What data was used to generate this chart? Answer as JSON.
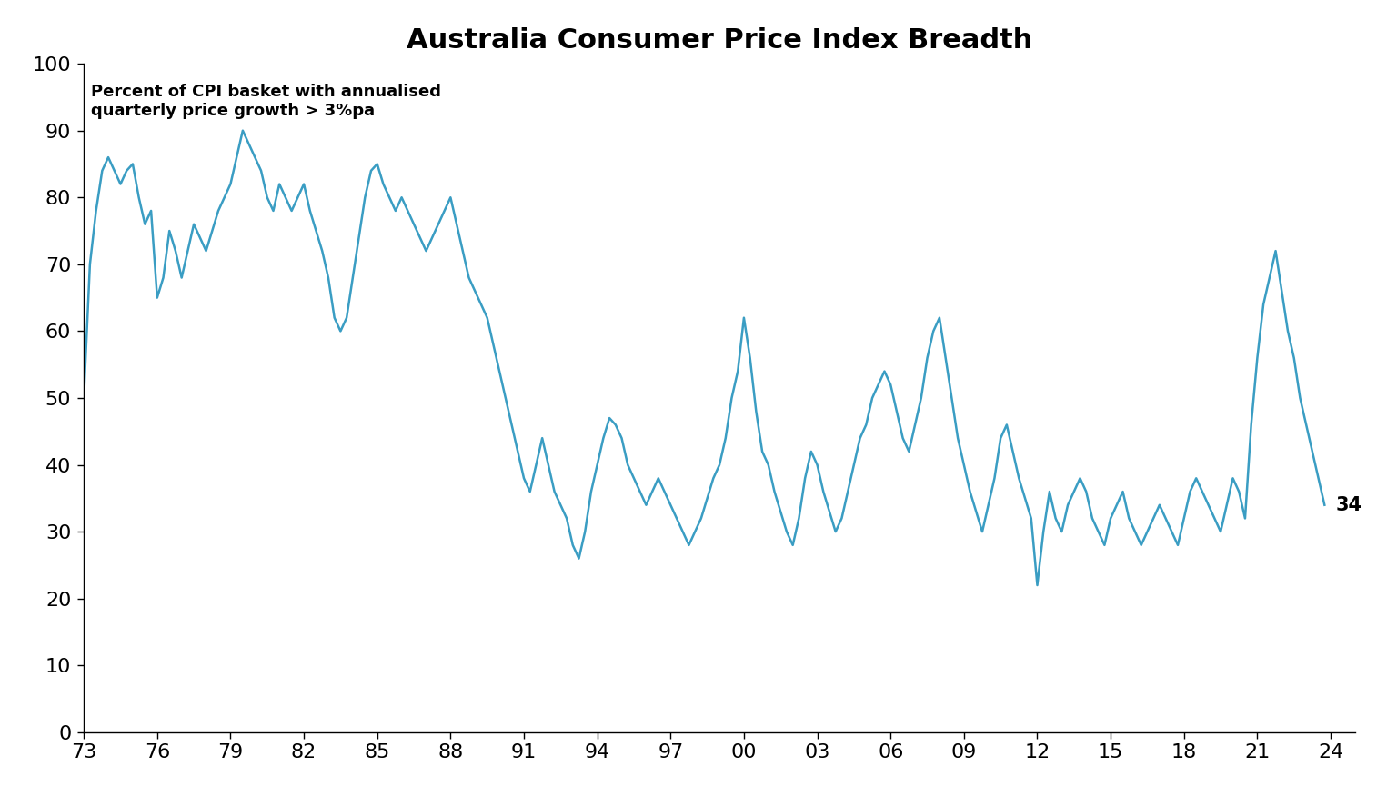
{
  "title": "Australia Consumer Price Index Breadth",
  "annotation_text": "Percent of CPI basket with annualised\nquarterly price growth > 3%pa",
  "last_value_label": "34",
  "line_color": "#3a9dc3",
  "line_width": 1.8,
  "background_color": "#ffffff",
  "ylim": [
    0,
    100
  ],
  "yticks": [
    0,
    10,
    20,
    30,
    40,
    50,
    60,
    70,
    80,
    90,
    100
  ],
  "xtick_labels": [
    "73",
    "76",
    "79",
    "82",
    "85",
    "88",
    "91",
    "94",
    "97",
    "00",
    "03",
    "06",
    "09",
    "12",
    "15",
    "18",
    "21",
    "24"
  ],
  "xtick_years": [
    1973,
    1976,
    1979,
    1982,
    1985,
    1988,
    1991,
    1994,
    1997,
    2000,
    2003,
    2006,
    2009,
    2012,
    2015,
    2018,
    2021,
    2024
  ],
  "data": [
    [
      1973.0,
      50
    ],
    [
      1973.25,
      70
    ],
    [
      1973.5,
      78
    ],
    [
      1973.75,
      84
    ],
    [
      1974.0,
      86
    ],
    [
      1974.25,
      84
    ],
    [
      1974.5,
      82
    ],
    [
      1974.75,
      84
    ],
    [
      1975.0,
      85
    ],
    [
      1975.25,
      80
    ],
    [
      1975.5,
      76
    ],
    [
      1975.75,
      78
    ],
    [
      1976.0,
      65
    ],
    [
      1976.25,
      68
    ],
    [
      1976.5,
      75
    ],
    [
      1976.75,
      72
    ],
    [
      1977.0,
      68
    ],
    [
      1977.25,
      72
    ],
    [
      1977.5,
      76
    ],
    [
      1977.75,
      74
    ],
    [
      1978.0,
      72
    ],
    [
      1978.25,
      75
    ],
    [
      1978.5,
      78
    ],
    [
      1978.75,
      80
    ],
    [
      1979.0,
      82
    ],
    [
      1979.25,
      86
    ],
    [
      1979.5,
      90
    ],
    [
      1979.75,
      88
    ],
    [
      1980.0,
      86
    ],
    [
      1980.25,
      84
    ],
    [
      1980.5,
      80
    ],
    [
      1980.75,
      78
    ],
    [
      1981.0,
      82
    ],
    [
      1981.25,
      80
    ],
    [
      1981.5,
      78
    ],
    [
      1981.75,
      80
    ],
    [
      1982.0,
      82
    ],
    [
      1982.25,
      78
    ],
    [
      1982.5,
      75
    ],
    [
      1982.75,
      72
    ],
    [
      1983.0,
      68
    ],
    [
      1983.25,
      62
    ],
    [
      1983.5,
      60
    ],
    [
      1983.75,
      62
    ],
    [
      1984.0,
      68
    ],
    [
      1984.25,
      74
    ],
    [
      1984.5,
      80
    ],
    [
      1984.75,
      84
    ],
    [
      1985.0,
      85
    ],
    [
      1985.25,
      82
    ],
    [
      1985.5,
      80
    ],
    [
      1985.75,
      78
    ],
    [
      1986.0,
      80
    ],
    [
      1986.25,
      78
    ],
    [
      1986.5,
      76
    ],
    [
      1986.75,
      74
    ],
    [
      1987.0,
      72
    ],
    [
      1987.25,
      74
    ],
    [
      1987.5,
      76
    ],
    [
      1987.75,
      78
    ],
    [
      1988.0,
      80
    ],
    [
      1988.25,
      76
    ],
    [
      1988.5,
      72
    ],
    [
      1988.75,
      68
    ],
    [
      1989.0,
      66
    ],
    [
      1989.25,
      64
    ],
    [
      1989.5,
      62
    ],
    [
      1989.75,
      58
    ],
    [
      1990.0,
      54
    ],
    [
      1990.25,
      50
    ],
    [
      1990.5,
      46
    ],
    [
      1990.75,
      42
    ],
    [
      1991.0,
      38
    ],
    [
      1991.25,
      36
    ],
    [
      1991.5,
      40
    ],
    [
      1991.75,
      44
    ],
    [
      1992.0,
      40
    ],
    [
      1992.25,
      36
    ],
    [
      1992.5,
      34
    ],
    [
      1992.75,
      32
    ],
    [
      1993.0,
      28
    ],
    [
      1993.25,
      26
    ],
    [
      1993.5,
      30
    ],
    [
      1993.75,
      36
    ],
    [
      1994.0,
      40
    ],
    [
      1994.25,
      44
    ],
    [
      1994.5,
      47
    ],
    [
      1994.75,
      46
    ],
    [
      1995.0,
      44
    ],
    [
      1995.25,
      40
    ],
    [
      1995.5,
      38
    ],
    [
      1995.75,
      36
    ],
    [
      1996.0,
      34
    ],
    [
      1996.25,
      36
    ],
    [
      1996.5,
      38
    ],
    [
      1996.75,
      36
    ],
    [
      1997.0,
      34
    ],
    [
      1997.25,
      32
    ],
    [
      1997.5,
      30
    ],
    [
      1997.75,
      28
    ],
    [
      1998.0,
      30
    ],
    [
      1998.25,
      32
    ],
    [
      1998.5,
      35
    ],
    [
      1998.75,
      38
    ],
    [
      1999.0,
      40
    ],
    [
      1999.25,
      44
    ],
    [
      1999.5,
      50
    ],
    [
      1999.75,
      54
    ],
    [
      2000.0,
      62
    ],
    [
      2000.25,
      56
    ],
    [
      2000.5,
      48
    ],
    [
      2000.75,
      42
    ],
    [
      2001.0,
      40
    ],
    [
      2001.25,
      36
    ],
    [
      2001.5,
      33
    ],
    [
      2001.75,
      30
    ],
    [
      2002.0,
      28
    ],
    [
      2002.25,
      32
    ],
    [
      2002.5,
      38
    ],
    [
      2002.75,
      42
    ],
    [
      2003.0,
      40
    ],
    [
      2003.25,
      36
    ],
    [
      2003.5,
      33
    ],
    [
      2003.75,
      30
    ],
    [
      2004.0,
      32
    ],
    [
      2004.25,
      36
    ],
    [
      2004.5,
      40
    ],
    [
      2004.75,
      44
    ],
    [
      2005.0,
      46
    ],
    [
      2005.25,
      50
    ],
    [
      2005.5,
      52
    ],
    [
      2005.75,
      54
    ],
    [
      2006.0,
      52
    ],
    [
      2006.25,
      48
    ],
    [
      2006.5,
      44
    ],
    [
      2006.75,
      42
    ],
    [
      2007.0,
      46
    ],
    [
      2007.25,
      50
    ],
    [
      2007.5,
      56
    ],
    [
      2007.75,
      60
    ],
    [
      2008.0,
      62
    ],
    [
      2008.25,
      56
    ],
    [
      2008.5,
      50
    ],
    [
      2008.75,
      44
    ],
    [
      2009.0,
      40
    ],
    [
      2009.25,
      36
    ],
    [
      2009.5,
      33
    ],
    [
      2009.75,
      30
    ],
    [
      2010.0,
      34
    ],
    [
      2010.25,
      38
    ],
    [
      2010.5,
      44
    ],
    [
      2010.75,
      46
    ],
    [
      2011.0,
      42
    ],
    [
      2011.25,
      38
    ],
    [
      2011.5,
      35
    ],
    [
      2011.75,
      32
    ],
    [
      2012.0,
      22
    ],
    [
      2012.25,
      30
    ],
    [
      2012.5,
      36
    ],
    [
      2012.75,
      32
    ],
    [
      2013.0,
      30
    ],
    [
      2013.25,
      34
    ],
    [
      2013.5,
      36
    ],
    [
      2013.75,
      38
    ],
    [
      2014.0,
      36
    ],
    [
      2014.25,
      32
    ],
    [
      2014.5,
      30
    ],
    [
      2014.75,
      28
    ],
    [
      2015.0,
      32
    ],
    [
      2015.25,
      34
    ],
    [
      2015.5,
      36
    ],
    [
      2015.75,
      32
    ],
    [
      2016.0,
      30
    ],
    [
      2016.25,
      28
    ],
    [
      2016.5,
      30
    ],
    [
      2016.75,
      32
    ],
    [
      2017.0,
      34
    ],
    [
      2017.25,
      32
    ],
    [
      2017.5,
      30
    ],
    [
      2017.75,
      28
    ],
    [
      2018.0,
      32
    ],
    [
      2018.25,
      36
    ],
    [
      2018.5,
      38
    ],
    [
      2018.75,
      36
    ],
    [
      2019.0,
      34
    ],
    [
      2019.25,
      32
    ],
    [
      2019.5,
      30
    ],
    [
      2019.75,
      34
    ],
    [
      2020.0,
      38
    ],
    [
      2020.25,
      36
    ],
    [
      2020.5,
      32
    ],
    [
      2020.75,
      46
    ],
    [
      2021.0,
      56
    ],
    [
      2021.25,
      64
    ],
    [
      2021.5,
      68
    ],
    [
      2021.75,
      72
    ],
    [
      2022.0,
      66
    ],
    [
      2022.25,
      60
    ],
    [
      2022.5,
      56
    ],
    [
      2022.75,
      50
    ],
    [
      2023.0,
      46
    ],
    [
      2023.25,
      42
    ],
    [
      2023.5,
      38
    ],
    [
      2023.75,
      34
    ]
  ]
}
